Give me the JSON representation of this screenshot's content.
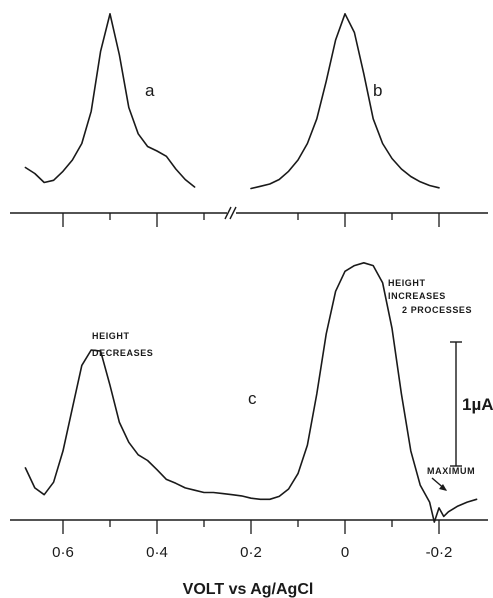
{
  "chart_data": [
    {
      "type": "line",
      "panel_label": "a",
      "x_direction": "decreasing",
      "series": [
        {
          "x": [
            0.68,
            0.66,
            0.64,
            0.62,
            0.6,
            0.58,
            0.56,
            0.54,
            0.52,
            0.5,
            0.48,
            0.46,
            0.44,
            0.42,
            0.4,
            0.38,
            0.36,
            0.34,
            0.32
          ],
          "y": [
            0.3,
            0.22,
            0.1,
            0.13,
            0.25,
            0.4,
            0.62,
            1.05,
            1.85,
            2.35,
            1.8,
            1.1,
            0.75,
            0.58,
            0.52,
            0.45,
            0.28,
            0.14,
            0.04
          ]
        }
      ]
    },
    {
      "type": "line",
      "panel_label": "b",
      "x_direction": "decreasing",
      "series": [
        {
          "x": [
            0.2,
            0.18,
            0.16,
            0.14,
            0.12,
            0.1,
            0.08,
            0.06,
            0.04,
            0.02,
            0.0,
            -0.02,
            -0.04,
            -0.06,
            -0.08,
            -0.1,
            -0.12,
            -0.14,
            -0.16,
            -0.18,
            -0.2
          ],
          "y": [
            0.02,
            0.05,
            0.08,
            0.14,
            0.25,
            0.4,
            0.62,
            0.95,
            1.45,
            2.0,
            2.35,
            2.1,
            1.55,
            0.95,
            0.62,
            0.42,
            0.28,
            0.18,
            0.11,
            0.06,
            0.03
          ]
        }
      ]
    },
    {
      "type": "line",
      "panel_label": "c",
      "x_direction": "decreasing",
      "xlabel": "VOLT vs Ag/AgCl",
      "xticks": [
        {
          "value": 0.6,
          "label": "0·6"
        },
        {
          "value": 0.4,
          "label": "0·4"
        },
        {
          "value": 0.2,
          "label": "0·2"
        },
        {
          "value": 0.0,
          "label": "0"
        },
        {
          "value": -0.2,
          "label": "-0·2"
        }
      ],
      "xlim": [
        0.7,
        -0.3
      ],
      "scale_bar": {
        "value": 1,
        "label": "1µA"
      },
      "annotations": [
        {
          "text_lines": [
            "HEIGHT",
            "DECREASES"
          ],
          "x": 0.56
        },
        {
          "text_lines": [
            "HEIGHT",
            "INCREASES",
            "2 PROCESSES"
          ],
          "x": -0.04
        },
        {
          "text": "MAXIMUM",
          "x": -0.2
        }
      ],
      "series": [
        {
          "x": [
            0.68,
            0.66,
            0.64,
            0.62,
            0.6,
            0.58,
            0.56,
            0.54,
            0.52,
            0.5,
            0.48,
            0.46,
            0.44,
            0.42,
            0.4,
            0.38,
            0.36,
            0.34,
            0.32,
            0.3,
            0.28,
            0.26,
            0.24,
            0.22,
            0.2,
            0.18,
            0.16,
            0.14,
            0.12,
            0.1,
            0.08,
            0.06,
            0.04,
            0.02,
            0.0,
            -0.02,
            -0.04,
            -0.06,
            -0.08,
            -0.1,
            -0.12,
            -0.14,
            -0.16,
            -0.18,
            -0.19,
            -0.2,
            -0.21,
            -0.22,
            -0.24,
            -0.26,
            -0.28
          ],
          "y": [
            0.65,
            0.3,
            0.18,
            0.4,
            0.95,
            1.7,
            2.45,
            2.72,
            2.7,
            2.1,
            1.45,
            1.1,
            0.88,
            0.78,
            0.62,
            0.45,
            0.38,
            0.3,
            0.26,
            0.22,
            0.22,
            0.2,
            0.18,
            0.16,
            0.12,
            0.1,
            0.1,
            0.15,
            0.28,
            0.55,
            1.05,
            1.95,
            3.0,
            3.75,
            4.1,
            4.2,
            4.25,
            4.2,
            3.9,
            3.1,
            1.95,
            0.95,
            0.35,
            0.05,
            -0.3,
            -0.05,
            -0.2,
            -0.12,
            -0.02,
            0.05,
            0.1
          ]
        }
      ]
    }
  ]
}
